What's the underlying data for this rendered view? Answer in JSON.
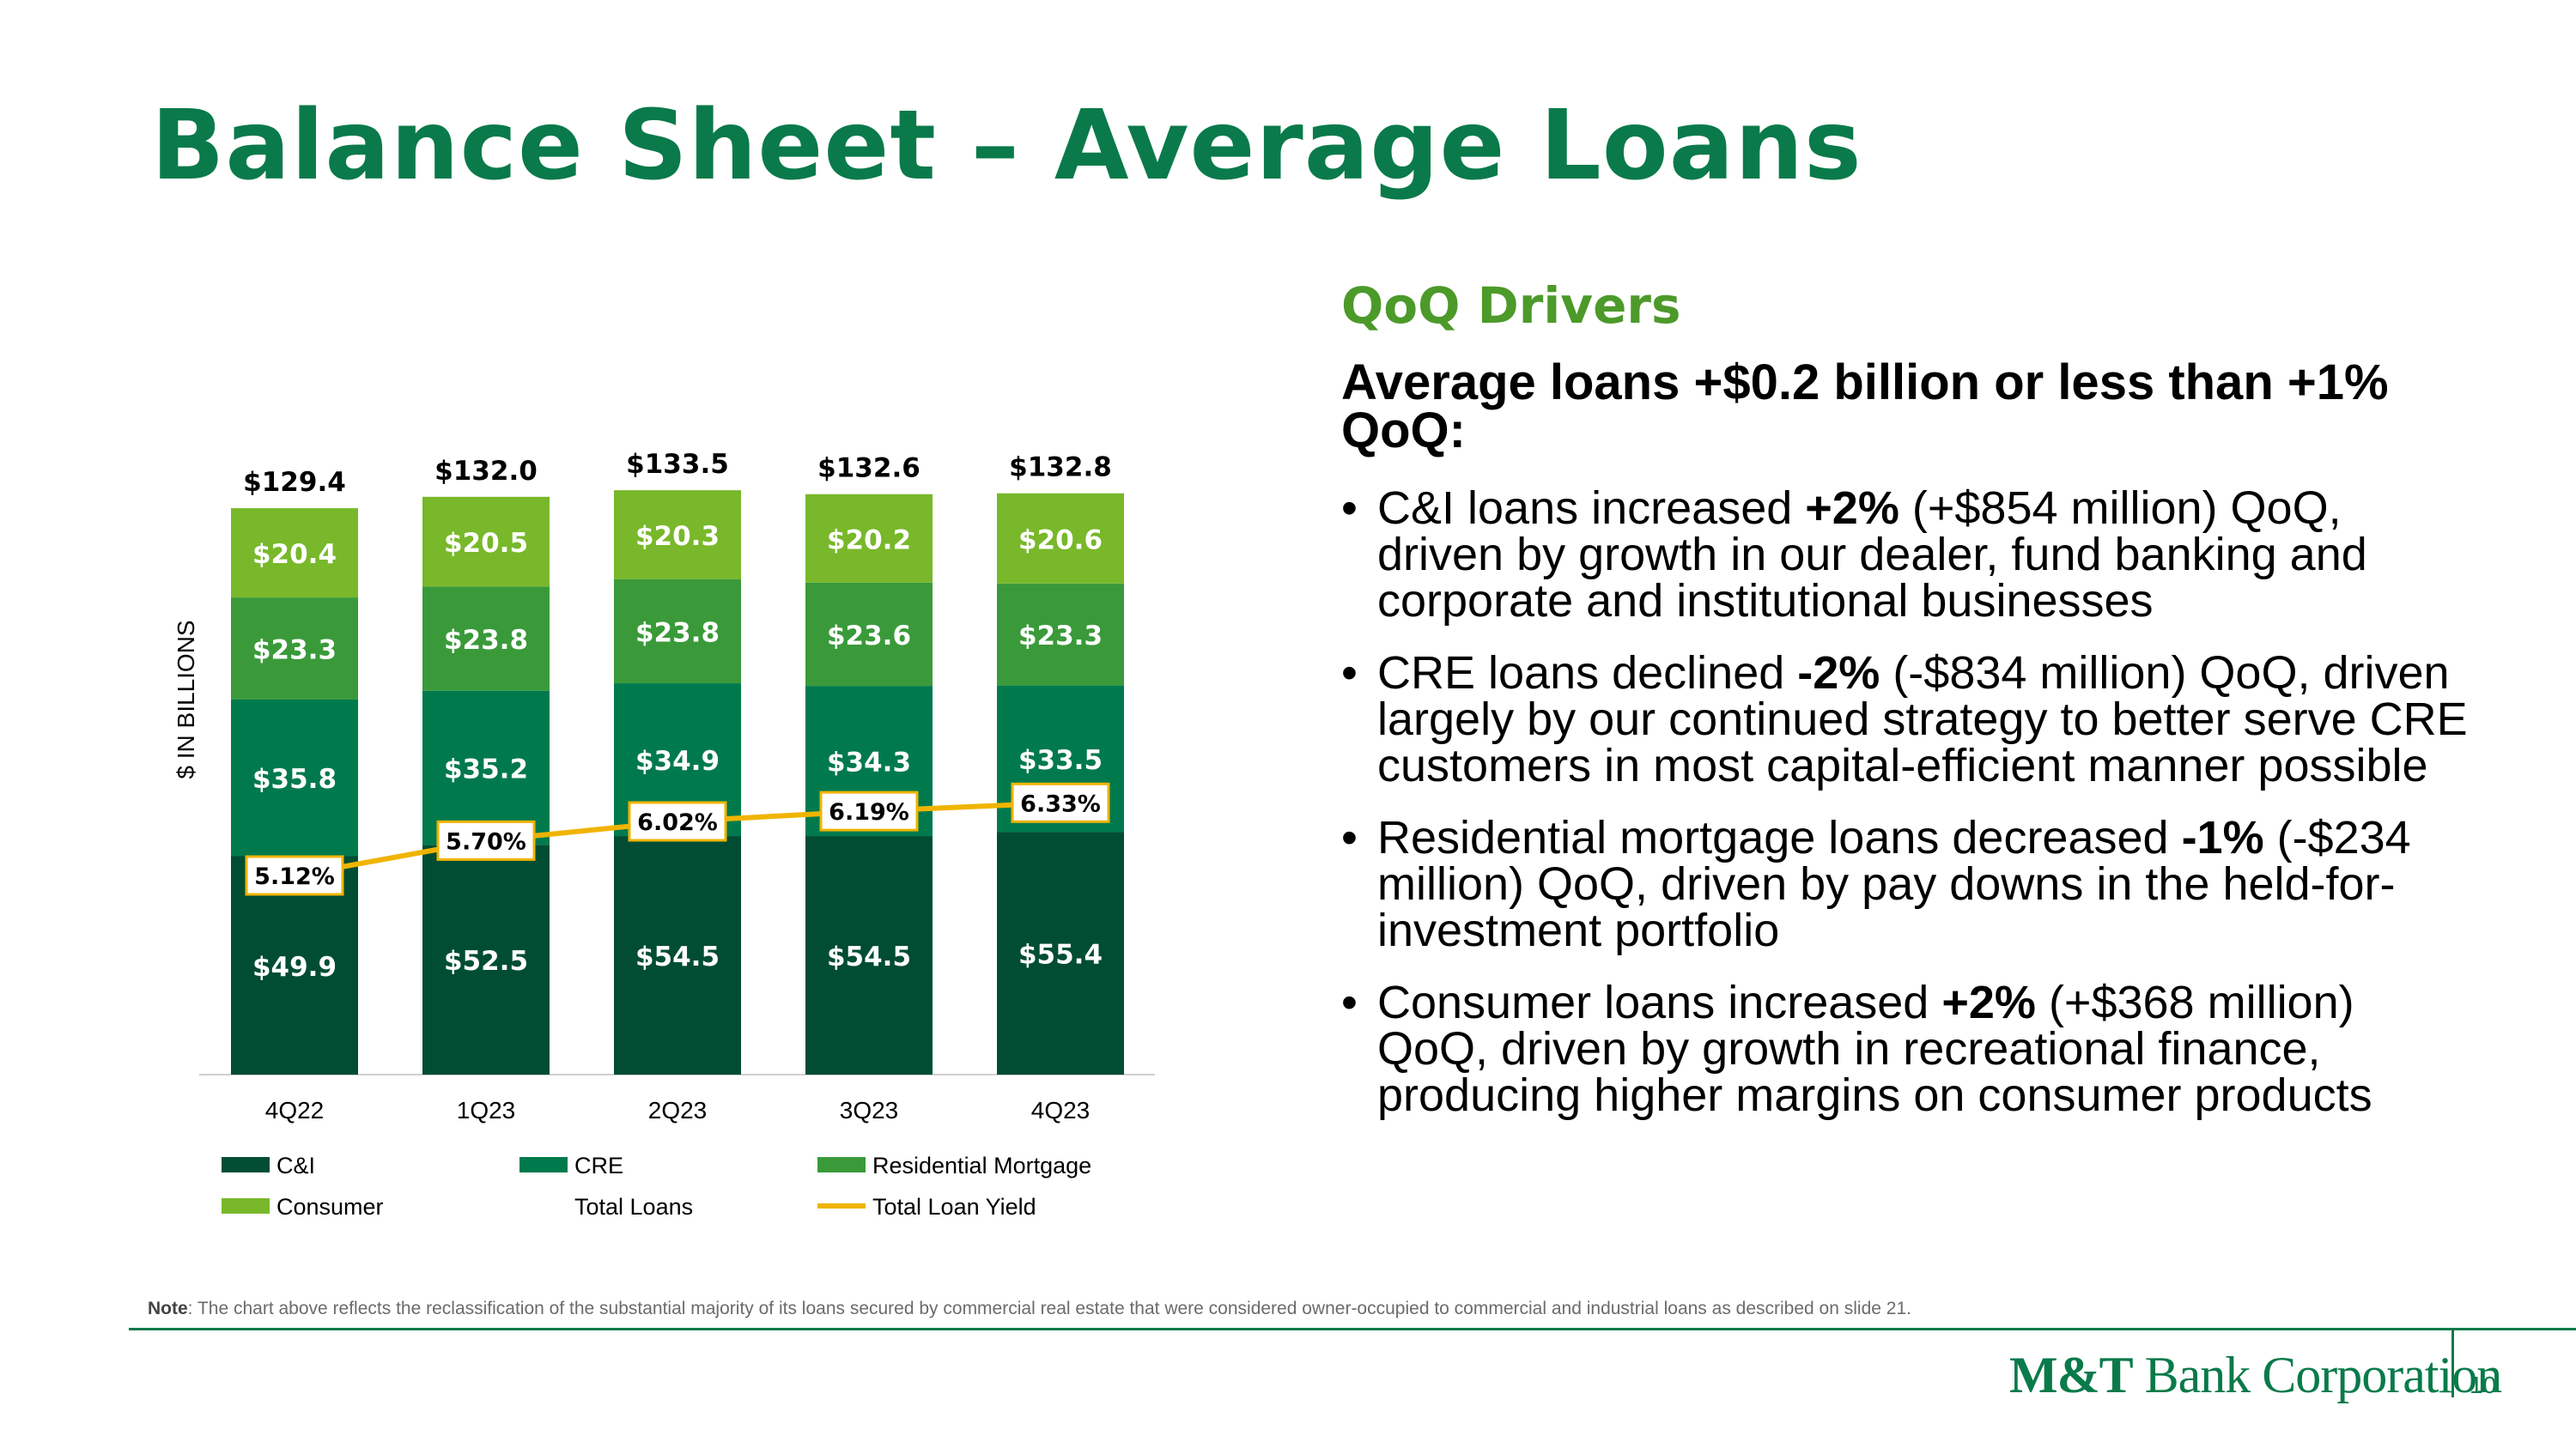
{
  "title": "Balance Sheet – Average Loans",
  "drivers": {
    "heading": "QoQ Drivers",
    "subheading": "Average loans +$0.2 billion or less than +1% QoQ:",
    "bullets": [
      {
        "pre": "C&I loans increased ",
        "bold": "+2%",
        "post": " (+$854 million) QoQ, driven by growth in our dealer, fund banking and corporate and institutional businesses"
      },
      {
        "pre": "CRE loans declined ",
        "bold": "-2%",
        "post": " (-$834 million) QoQ, driven largely by our continued strategy to better serve CRE customers in most capital-efficient manner possible"
      },
      {
        "pre": "Residential mortgage loans decreased ",
        "bold": "-1%",
        "post": " (-$234 million) QoQ, driven by pay downs in the held-for-investment portfolio"
      },
      {
        "pre": "Consumer loans increased ",
        "bold": "+2%",
        "post": " (+$368 million) QoQ, driven by growth in recreational finance, producing higher margins on consumer products"
      }
    ]
  },
  "note": {
    "label": "Note",
    "text": ": The chart above reflects the reclassification of the substantial majority of its loans secured by commercial real estate that were considered owner-occupied to commercial and industrial loans as described on slide 21."
  },
  "logo": {
    "bold": "M&T",
    "rest": " Bank Corporation"
  },
  "page_number": "10",
  "chart_data": {
    "type": "bar",
    "stacked": true,
    "ylabel": "$ IN BILLIONS",
    "categories": [
      "4Q22",
      "1Q23",
      "2Q23",
      "3Q23",
      "4Q23"
    ],
    "series": [
      {
        "name": "C&I",
        "color": "#004d33",
        "values": [
          49.9,
          52.5,
          54.5,
          54.5,
          55.4
        ],
        "labels": [
          "$49.9",
          "$52.5",
          "$54.5",
          "$54.5",
          "$55.4"
        ]
      },
      {
        "name": "CRE",
        "color": "#007a4d",
        "values": [
          35.8,
          35.2,
          34.9,
          34.3,
          33.5
        ],
        "labels": [
          "$35.8",
          "$35.2",
          "$34.9",
          "$34.3",
          "$33.5"
        ]
      },
      {
        "name": "Residential Mortgage",
        "color": "#3a9a3a",
        "values": [
          23.3,
          23.8,
          23.8,
          23.6,
          23.3
        ],
        "labels": [
          "$23.3",
          "$23.8",
          "$23.8",
          "$23.6",
          "$23.3"
        ]
      },
      {
        "name": "Consumer",
        "color": "#78b82a",
        "values": [
          20.4,
          20.5,
          20.3,
          20.2,
          20.6
        ],
        "labels": [
          "$20.4",
          "$20.5",
          "$20.3",
          "$20.2",
          "$20.6"
        ]
      }
    ],
    "totals": {
      "name": "Total Loans",
      "values": [
        129.4,
        132.0,
        133.5,
        132.6,
        132.8
      ],
      "labels": [
        "$129.4",
        "$132.0",
        "$133.5",
        "$132.6",
        "$132.8"
      ]
    },
    "line": {
      "name": "Total Loan Yield",
      "color": "#f0b400",
      "values": [
        5.12,
        5.7,
        6.02,
        6.19,
        6.33
      ],
      "labels": [
        "5.12%",
        "5.70%",
        "6.02%",
        "6.19%",
        "6.33%"
      ]
    },
    "legend_position": "bottom",
    "grid": false
  }
}
